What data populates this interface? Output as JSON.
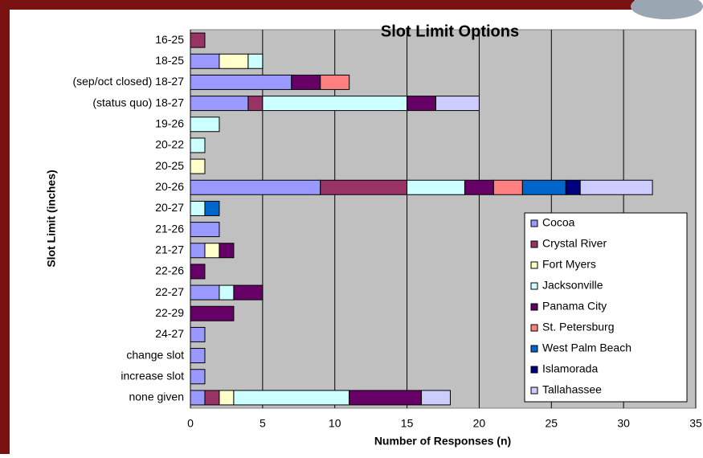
{
  "chart_data": {
    "type": "stacked-barh",
    "title": "Slot Limit Options",
    "xlabel": "Number of Responses (n)",
    "ylabel": "Slot Limit (inches)",
    "categories": [
      "16-25",
      "18-25",
      "(sep/oct closed) 18-27",
      "(status quo) 18-27",
      "19-26",
      "20-22",
      "20-25",
      "20-26",
      "20-27",
      "21-26",
      "21-27",
      "22-26",
      "22-27",
      "22-29",
      "24-27",
      "change slot",
      "increase slot",
      "none given"
    ],
    "series": [
      {
        "name": "Cocoa",
        "color": "#9999ff",
        "values": [
          0,
          2,
          7,
          4,
          0,
          0,
          0,
          9,
          0,
          2,
          1,
          0,
          2,
          0,
          1,
          1,
          1,
          1
        ]
      },
      {
        "name": "Crystal River",
        "color": "#993366",
        "values": [
          1,
          0,
          0,
          1,
          0,
          0,
          0,
          6,
          0,
          0,
          0,
          0,
          0,
          0,
          0,
          0,
          0,
          1
        ]
      },
      {
        "name": "Fort Myers",
        "color": "#ffffcc",
        "values": [
          0,
          2,
          0,
          0,
          0,
          0,
          1,
          0,
          0,
          0,
          1,
          0,
          0,
          0,
          0,
          0,
          0,
          1
        ]
      },
      {
        "name": "Jacksonville",
        "color": "#ccffff",
        "values": [
          0,
          1,
          0,
          10,
          2,
          1,
          0,
          4,
          1,
          0,
          0,
          0,
          1,
          0,
          0,
          0,
          0,
          8
        ]
      },
      {
        "name": "Panama City",
        "color": "#660066",
        "values": [
          0,
          0,
          2,
          2,
          0,
          0,
          0,
          2,
          0,
          0,
          1,
          1,
          2,
          3,
          0,
          0,
          0,
          5
        ]
      },
      {
        "name": "St. Petersburg",
        "color": "#ff8080",
        "values": [
          0,
          0,
          2,
          0,
          0,
          0,
          0,
          2,
          0,
          0,
          0,
          0,
          0,
          0,
          0,
          0,
          0,
          0
        ]
      },
      {
        "name": "West Palm Beach",
        "color": "#0066cc",
        "values": [
          0,
          0,
          0,
          0,
          0,
          0,
          0,
          3,
          1,
          0,
          0,
          0,
          0,
          0,
          0,
          0,
          0,
          0
        ]
      },
      {
        "name": "Islamorada",
        "color": "#000080",
        "values": [
          0,
          0,
          0,
          0,
          0,
          0,
          0,
          1,
          0,
          0,
          0,
          0,
          0,
          0,
          0,
          0,
          0,
          0
        ]
      },
      {
        "name": "Tallahassee",
        "color": "#ccccff",
        "values": [
          0,
          0,
          0,
          3,
          0,
          0,
          0,
          5,
          0,
          0,
          0,
          0,
          0,
          0,
          0,
          0,
          0,
          2
        ]
      }
    ],
    "xlim": [
      0,
      35
    ],
    "xticks": [
      0,
      5,
      10,
      15,
      20,
      25,
      30,
      35
    ],
    "grid": true
  }
}
